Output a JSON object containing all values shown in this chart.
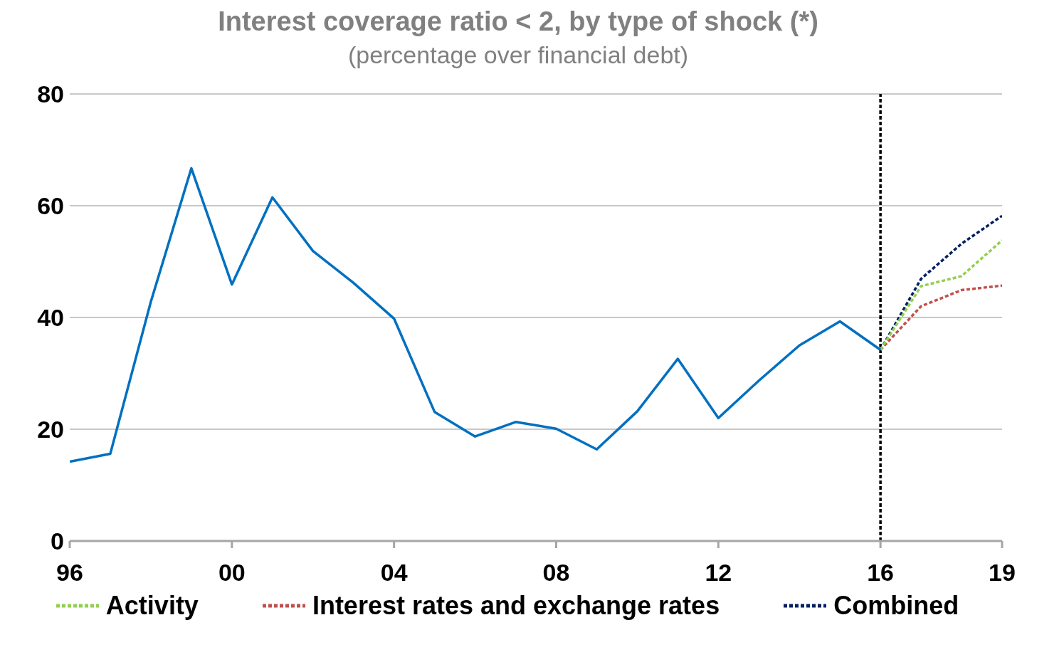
{
  "chart_data": {
    "type": "line",
    "title": "Interest coverage ratio < 2, by type of shock (*)",
    "subtitle": "(percentage over financial debt)",
    "x": [
      1996,
      1997,
      1998,
      1999,
      2000,
      2001,
      2002,
      2003,
      2004,
      2005,
      2006,
      2007,
      2008,
      2009,
      2010,
      2011,
      2012,
      2013,
      2014,
      2015,
      2016,
      2017,
      2018,
      2019
    ],
    "series": [
      {
        "color": "#0070c0",
        "line_style": "solid",
        "values": [
          14.2,
          15.6,
          42.8,
          66.7,
          45.9,
          61.5,
          51.9,
          46.2,
          39.8,
          23.1,
          18.7,
          21.3,
          20.1,
          16.4,
          23.2,
          32.6,
          22.0,
          28.7,
          35.0,
          39.3,
          34.2,
          null,
          null,
          null
        ]
      },
      {
        "name": "Activity",
        "color": "#92d050",
        "line_style": "dashed",
        "values": [
          null,
          null,
          null,
          null,
          null,
          null,
          null,
          null,
          null,
          null,
          null,
          null,
          null,
          null,
          null,
          null,
          null,
          null,
          null,
          null,
          34.2,
          45.6,
          47.4,
          53.8
        ]
      },
      {
        "name": "Interest rates and exchange rates",
        "color": "#c0504d",
        "line_style": "dashed",
        "values": [
          null,
          null,
          null,
          null,
          null,
          null,
          null,
          null,
          null,
          null,
          null,
          null,
          null,
          null,
          null,
          null,
          null,
          null,
          null,
          null,
          34.2,
          42.0,
          44.9,
          45.7
        ]
      },
      {
        "name": "Combined",
        "color": "#002060",
        "line_style": "dashed",
        "values": [
          null,
          null,
          null,
          null,
          null,
          null,
          null,
          null,
          null,
          null,
          null,
          null,
          null,
          null,
          null,
          null,
          null,
          null,
          null,
          null,
          34.2,
          46.9,
          53.2,
          58.2
        ]
      }
    ],
    "xlim": [
      1996,
      2019
    ],
    "xticks": [
      {
        "value": 1996,
        "label": "96"
      },
      {
        "value": 2000,
        "label": "00"
      },
      {
        "value": 2004,
        "label": "04"
      },
      {
        "value": 2008,
        "label": "08"
      },
      {
        "value": 2012,
        "label": "12"
      },
      {
        "value": 2016,
        "label": "16"
      },
      {
        "value": 2019,
        "label": "19"
      }
    ],
    "ylim": [
      0,
      80
    ],
    "yticks": [
      0,
      20,
      40,
      60,
      80
    ],
    "grid": "y",
    "legend": "bottom",
    "marker": "none",
    "ref_lines": [
      {
        "axis": "x",
        "value": 2016,
        "color": "#000000",
        "line_style": "dashed"
      }
    ]
  }
}
